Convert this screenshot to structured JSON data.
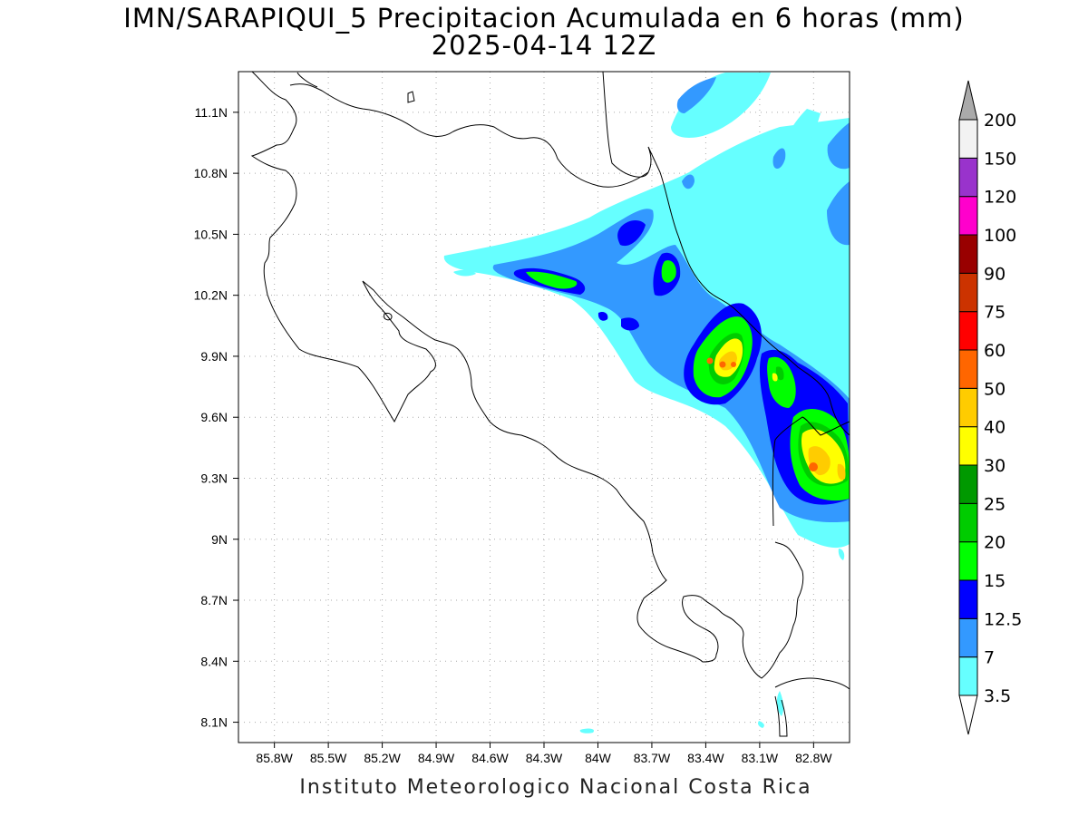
{
  "title": {
    "line1": "IMN/SARAPIQUI_5 Precipitacion Acumulada en 6 horas (mm)",
    "line2": "2025-04-14 12Z"
  },
  "footer": "Instituto Meteorologico Nacional Costa Rica",
  "map": {
    "lon_range": [
      -86.0,
      -82.6
    ],
    "lat_range": [
      8.0,
      11.3
    ],
    "lon_ticks": [
      {
        "value": -85.8,
        "label": "85.8W"
      },
      {
        "value": -85.5,
        "label": "85.5W"
      },
      {
        "value": -85.2,
        "label": "85.2W"
      },
      {
        "value": -84.9,
        "label": "84.9W"
      },
      {
        "value": -84.6,
        "label": "84.6W"
      },
      {
        "value": -84.3,
        "label": "84.3W"
      },
      {
        "value": -84.0,
        "label": "84W"
      },
      {
        "value": -83.7,
        "label": "83.7W"
      },
      {
        "value": -83.4,
        "label": "83.4W"
      },
      {
        "value": -83.1,
        "label": "83.1W"
      },
      {
        "value": -82.8,
        "label": "82.8W"
      }
    ],
    "lat_ticks": [
      {
        "value": 8.1,
        "label": "8.1N"
      },
      {
        "value": 8.4,
        "label": "8.4N"
      },
      {
        "value": 8.7,
        "label": "8.7N"
      },
      {
        "value": 9.0,
        "label": "9N"
      },
      {
        "value": 9.3,
        "label": "9.3N"
      },
      {
        "value": 9.6,
        "label": "9.6N"
      },
      {
        "value": 9.9,
        "label": "9.9N"
      },
      {
        "value": 10.2,
        "label": "10.2N"
      },
      {
        "value": 10.5,
        "label": "10.5N"
      },
      {
        "value": 10.8,
        "label": "10.8N"
      },
      {
        "value": 11.1,
        "label": "11.1N"
      }
    ],
    "grid": true
  },
  "colorbar": {
    "levels": [
      "3.5",
      "7",
      "12.5",
      "15",
      "20",
      "25",
      "30",
      "40",
      "50",
      "60",
      "75",
      "90",
      "100",
      "120",
      "150",
      "200"
    ],
    "colors": [
      "#66ffff",
      "#3399ff",
      "#0000ff",
      "#00ff00",
      "#00cc00",
      "#009900",
      "#ffff00",
      "#ffcc00",
      "#ff6600",
      "#ff0000",
      "#cc3300",
      "#990000",
      "#ff00cc",
      "#9933cc",
      "#f2f2f2"
    ],
    "under_color": "#ffffff",
    "over_color": "#aaaaaa"
  }
}
